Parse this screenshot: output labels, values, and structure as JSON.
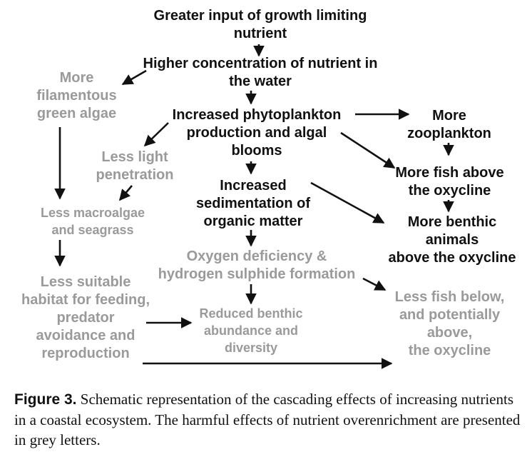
{
  "colors": {
    "primary_text": "#111111",
    "harmful_text": "#9a9a9a",
    "arrow": "#111111"
  },
  "nodes": {
    "greater_input": "Greater input of growth limiting\nnutrient",
    "higher_concentration": "Higher concentration of nutrient in\nthe water",
    "more_filamentous": "More\nfilamentous\ngreen algae",
    "increased_phytoplankton": "Increased phytoplankton\nproduction and algal\nblooms",
    "more_zooplankton": "More\nzooplankton",
    "less_light": "Less light\npenetration",
    "increased_sedimentation": "Increased\nsedimentation of\norganic matter",
    "more_fish_above": "More fish above\nthe oxycline",
    "less_macroalgae": "Less macroalgae\nand seagrass",
    "more_benthic": "More benthic\nanimals\nabove the oxycline",
    "oxygen_deficiency": "Oxygen deficiency &\nhydrogen sulphide formation",
    "less_suitable_habitat": "Less suitable\nhabitat for feeding,\npredator\navoidance and\nreproduction",
    "reduced_benthic": "Reduced benthic\nabundance and\ndiversity",
    "less_fish_below": "Less fish below,\nand potentially\nabove,\nthe oxycline"
  },
  "caption": {
    "label": "Figure 3.",
    "text": " Schematic representation of the cascading effects of increasing nutrients in a coastal ecosystem. The harmful effects of nutrient overenrichment are presented in grey letters."
  }
}
